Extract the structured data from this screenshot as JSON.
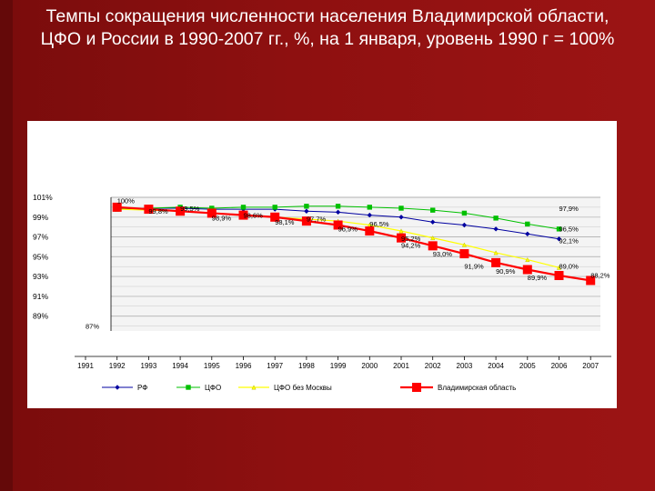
{
  "page": {
    "title": "Темпы сокращения численности населения Владимирской области, ЦФО и России в 1990-2007 гг., %, на 1 января, уровень 1990 г = 100%"
  },
  "chart_data": {
    "type": "line",
    "title": "",
    "xlabel": "",
    "ylabel": "",
    "x": [
      "1991",
      "1992",
      "1993",
      "1994",
      "1995",
      "1996",
      "1997",
      "1998",
      "1999",
      "2000",
      "2001",
      "2002",
      "2003",
      "2004",
      "2005",
      "2006",
      "2007"
    ],
    "yticks": [
      "101%",
      "99%",
      "97%",
      "95%",
      "93%",
      "91%",
      "89%"
    ],
    "ylim": [
      87.5,
      101
    ],
    "grid": true,
    "legend_position": "bottom",
    "series": [
      {
        "name": "РФ",
        "color": "#0000a0",
        "marker": "diamond",
        "x": [
          "1992",
          "1993",
          "1994",
          "1995",
          "1996",
          "1997",
          "1998",
          "1999",
          "2000",
          "2001",
          "2002",
          "2003",
          "2004",
          "2005",
          "2006"
        ],
        "values": [
          99.9,
          99.9,
          99.9,
          99.8,
          99.8,
          99.8,
          99.6,
          99.5,
          99.2,
          99.0,
          98.5,
          98.2,
          97.8,
          97.3,
          96.8
        ]
      },
      {
        "name": "ЦФО",
        "color": "#00c000",
        "marker": "square",
        "x": [
          "1992",
          "1993",
          "1994",
          "1995",
          "1996",
          "1997",
          "1998",
          "1999",
          "2000",
          "2001",
          "2002",
          "2003",
          "2004",
          "2005",
          "2006"
        ],
        "values": [
          99.8,
          99.9,
          100.0,
          99.9,
          100.0,
          100.0,
          100.1,
          100.1,
          100.0,
          99.9,
          99.7,
          99.4,
          98.9,
          98.3,
          97.8
        ]
      },
      {
        "name": "ЦФО без Москвы",
        "color": "#ffff00",
        "marker": "triangle",
        "x": [
          "1992",
          "1993",
          "1994",
          "1995",
          "1996",
          "1997",
          "1998",
          "1999",
          "2000",
          "2001",
          "2002",
          "2003",
          "2004",
          "2005",
          "2006"
        ],
        "values": [
          99.8,
          99.7,
          99.6,
          99.4,
          99.2,
          99.0,
          98.8,
          98.6,
          98.2,
          97.6,
          96.9,
          96.2,
          95.4,
          94.7,
          93.9
        ]
      },
      {
        "name": "Владимирская область",
        "color": "#ff0000",
        "marker": "square",
        "x": [
          "1992",
          "1993",
          "1994",
          "1995",
          "1996",
          "1997",
          "1998",
          "1999",
          "2000",
          "2001",
          "2002",
          "2003",
          "2004",
          "2005",
          "2006",
          "2007"
        ],
        "values": [
          100.0,
          99.8,
          99.6,
          99.4,
          99.2,
          99.0,
          98.6,
          98.2,
          97.6,
          96.9,
          96.1,
          95.3,
          94.4,
          93.7,
          93.1,
          92.6
        ]
      }
    ],
    "annotations": [
      {
        "text": "100%",
        "x": "1992",
        "y": 100.4
      },
      {
        "text": "99,8%",
        "x": "1993",
        "y": 99.35
      },
      {
        "text": "99,5%",
        "x": "1994",
        "y": 99.6
      },
      {
        "text": "98,9%",
        "x": "1995",
        "y": 98.65
      },
      {
        "text": "98,6%",
        "x": "1996",
        "y": 98.95
      },
      {
        "text": "98,1%",
        "x": "1997",
        "y": 98.25
      },
      {
        "text": "97,7%",
        "x": "1998",
        "y": 98.55
      },
      {
        "text": "96,9%",
        "x": "1999",
        "y": 97.55
      },
      {
        "text": "96,5%",
        "x": "2000",
        "y": 98.05
      },
      {
        "text": "95,2%",
        "x": "2001",
        "y": 96.6
      },
      {
        "text": "94,2%",
        "x": "2001",
        "y": 95.9
      },
      {
        "text": "93,0%",
        "x": "2002",
        "y": 95.05
      },
      {
        "text": "91,9%",
        "x": "2003",
        "y": 93.8
      },
      {
        "text": "90,9%",
        "x": "2004",
        "y": 93.3
      },
      {
        "text": "89,9%",
        "x": "2005",
        "y": 92.65
      },
      {
        "text": "97,9%",
        "x": "2006",
        "y": 99.6
      },
      {
        "text": "96,5%",
        "x": "2006",
        "y": 97.55
      },
      {
        "text": "92,1%",
        "x": "2006",
        "y": 96.35
      },
      {
        "text": "89,0%",
        "x": "2006",
        "y": 93.8
      },
      {
        "text": "88,2%",
        "x": "2007",
        "y": 92.85
      },
      {
        "text": "87%",
        "x": "1991",
        "y": 87.75
      }
    ]
  }
}
